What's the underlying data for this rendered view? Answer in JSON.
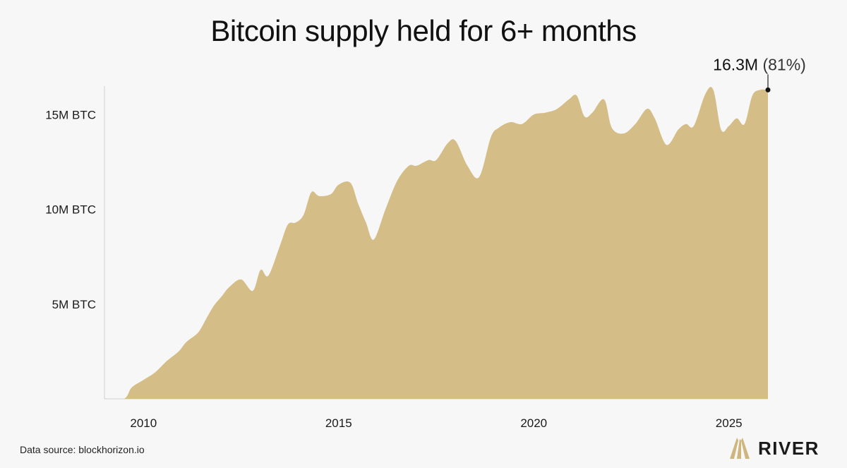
{
  "title": "Bitcoin supply held for 6+ months",
  "source": "Data source: blockhorizon.io",
  "brand": {
    "name": "RIVER",
    "logo_icon": "river-logo-icon"
  },
  "colors": {
    "area_fill": "#d4bd86",
    "axis": "#cfcfcf",
    "text": "#141414",
    "background": "#f7f7f7"
  },
  "chart_data": {
    "type": "area",
    "title": "Bitcoin supply held for 6+ months",
    "xlabel": "",
    "ylabel": "",
    "xlim": [
      2009.0,
      2026.0
    ],
    "ylim": [
      0,
      16.5
    ],
    "y_unit": "M BTC",
    "grid": false,
    "x_ticks": [
      2010,
      2015,
      2020,
      2025
    ],
    "x_tick_labels": [
      "2010",
      "2015",
      "2020",
      "2025"
    ],
    "y_ticks": [
      5,
      10,
      15
    ],
    "y_tick_labels": [
      "5M BTC",
      "10M BTC",
      "15M BTC"
    ],
    "annotation": {
      "value_label": "16.3M",
      "pct_label": "(81%)",
      "x": 2026.0,
      "y": 16.3
    },
    "series": [
      {
        "x": [
          2009.0,
          2009.5,
          2009.7,
          2010.0,
          2010.3,
          2010.6,
          2010.9,
          2011.1,
          2011.4,
          2011.6,
          2011.8,
          2012.0,
          2012.2,
          2012.5,
          2012.8,
          2013.0,
          2013.2,
          2013.5,
          2013.7,
          2013.9,
          2014.1,
          2014.3,
          2014.5,
          2014.8,
          2015.0,
          2015.3,
          2015.5,
          2015.7,
          2015.9,
          2016.2,
          2016.5,
          2016.8,
          2017.0,
          2017.3,
          2017.5,
          2017.8,
          2018.0,
          2018.3,
          2018.6,
          2018.9,
          2019.1,
          2019.4,
          2019.7,
          2020.0,
          2020.3,
          2020.6,
          2020.9,
          2021.1,
          2021.3,
          2021.5,
          2021.8,
          2022.0,
          2022.3,
          2022.6,
          2022.9,
          2023.1,
          2023.4,
          2023.7,
          2023.9,
          2024.1,
          2024.4,
          2024.6,
          2024.8,
          2025.0,
          2025.2,
          2025.4,
          2025.6,
          2025.8,
          2026.0
        ],
        "y": [
          0.0,
          0.0,
          0.6,
          1.0,
          1.4,
          2.0,
          2.5,
          3.0,
          3.5,
          4.2,
          4.9,
          5.4,
          5.9,
          6.3,
          5.7,
          6.8,
          6.5,
          8.1,
          9.2,
          9.3,
          9.7,
          10.9,
          10.7,
          10.8,
          11.3,
          11.4,
          10.3,
          9.3,
          8.4,
          10.0,
          11.5,
          12.3,
          12.3,
          12.6,
          12.6,
          13.5,
          13.6,
          12.3,
          11.7,
          13.8,
          14.3,
          14.6,
          14.5,
          15.0,
          15.1,
          15.3,
          15.8,
          16.0,
          14.9,
          15.1,
          15.8,
          14.3,
          14.0,
          14.5,
          15.3,
          14.8,
          13.4,
          14.2,
          14.5,
          14.4,
          16.1,
          16.3,
          14.2,
          14.4,
          14.8,
          14.5,
          16.0,
          16.3,
          16.3
        ],
        "fill": "#d4bd86"
      }
    ]
  }
}
